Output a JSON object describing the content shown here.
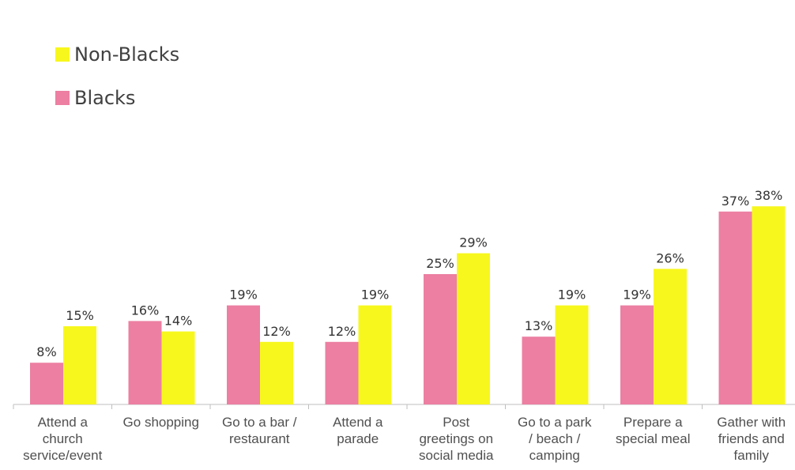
{
  "legend": [
    {
      "name": "Non-Blacks",
      "color": "#f7f71e"
    },
    {
      "name": "Blacks",
      "color": "#ec7fa2"
    }
  ],
  "chart_data": {
    "type": "bar",
    "categories": [
      [
        "Attend a",
        "church",
        "service/event"
      ],
      [
        "Go shopping"
      ],
      [
        "Go to a bar /",
        "restaurant"
      ],
      [
        "Attend a",
        "parade"
      ],
      [
        "Post",
        "greetings on",
        "social media"
      ],
      [
        "Go to a park",
        "/ beach /",
        "camping"
      ],
      [
        "Prepare a",
        "special meal"
      ],
      [
        "Gather with",
        "friends and",
        "family"
      ]
    ],
    "series": [
      {
        "name": "Blacks",
        "color": "#ec7fa2",
        "values": [
          8,
          16,
          19,
          12,
          25,
          13,
          19,
          37
        ],
        "labels": [
          "8%",
          "16%",
          "19%",
          "12%",
          "25%",
          "13%",
          "19%",
          "37%"
        ]
      },
      {
        "name": "Non-Blacks",
        "color": "#f7f71e",
        "values": [
          15,
          14,
          12,
          19,
          29,
          19,
          26,
          38
        ],
        "labels": [
          "15%",
          "14%",
          "12%",
          "19%",
          "29%",
          "19%",
          "26%",
          "38%"
        ]
      }
    ],
    "legend_position": "top-left",
    "grid": false,
    "ylim": [
      0,
      40
    ]
  }
}
